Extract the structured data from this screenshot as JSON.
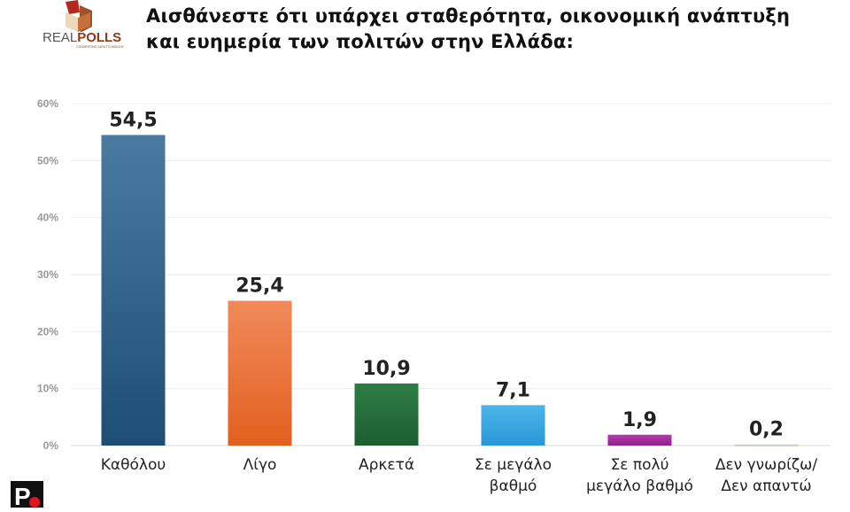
{
  "logo": {
    "name": "REALPOLLS",
    "tagline": "CONVERTING DATA TO INSIGHT"
  },
  "chart_data": {
    "type": "bar",
    "title": "Αισθάνεστε ότι υπάρχει σταθερότητα, οικονομική ανάπτυξη και ευημερία των πολιτών στην Ελλάδα:",
    "title_lines": [
      "Αισθάνεστε ότι υπάρχει σταθερότητα, οικονομική ανάπτυξη",
      "και ευημερία των πολιτών στην Ελλάδα:"
    ],
    "categories": [
      [
        "Καθόλου"
      ],
      [
        "Λίγο"
      ],
      [
        "Αρκετά"
      ],
      [
        "Σε μεγάλο",
        "βαθμό"
      ],
      [
        "Σε πολύ",
        "μεγάλο βαθμό"
      ],
      [
        "Δεν γνωρίζω/",
        "Δεν απαντώ"
      ]
    ],
    "values": [
      54.5,
      25.4,
      10.9,
      7.1,
      1.9,
      0.2
    ],
    "data_labels": [
      "54,5",
      "25,4",
      "10,9",
      "7,1",
      "1,9",
      "0,2"
    ],
    "colors": [
      [
        "#4a7ba0",
        "#1d4e75"
      ],
      [
        "#f08a5a",
        "#e2601f"
      ],
      [
        "#2f7d45",
        "#1b5e30"
      ],
      [
        "#4cb6ea",
        "#2a97d6"
      ],
      [
        "#b43cad",
        "#8e1f8c"
      ],
      [
        "#c9e0c0",
        "#a9cba0"
      ]
    ],
    "ylim": [
      0,
      60
    ],
    "yticks": [
      "0%",
      "10%",
      "20%",
      "30%",
      "40%",
      "50%",
      "60%"
    ],
    "grid": true
  }
}
